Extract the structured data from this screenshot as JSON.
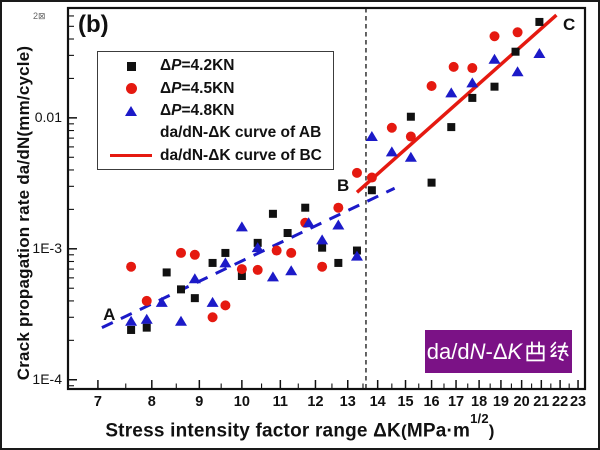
{
  "figure": {
    "panel_label": "(b)",
    "corner_artifact": "2⊠",
    "frame_color": "#1a1a1a",
    "background": "#ffffff"
  },
  "chart_data": {
    "type": "scatter",
    "x_scale": "log",
    "y_scale": "log",
    "grid": false,
    "xlabel": {
      "text": "Stress intensity factor range ΔK",
      "unit_open": "(",
      "unit": "MPa·m",
      "unit_sup": "1/2",
      "unit_close": ")"
    },
    "ylabel": "Crack propagation rate da/dN(mm/cycle)",
    "xlim": [
      6.5,
      23.4
    ],
    "ylim": [
      8.5e-05,
      0.069
    ],
    "x_major_ticks": [
      7,
      8,
      9,
      10,
      11,
      12,
      13,
      14,
      15,
      16,
      17,
      18,
      19,
      20,
      21,
      22,
      23
    ],
    "y_major_ticks": [
      {
        "value": 0.01,
        "label": "0.01"
      },
      {
        "value": 0.001,
        "label": "1E-3"
      },
      {
        "value": 0.0001,
        "label": "1E-4"
      }
    ],
    "series": [
      {
        "name": "ΔP=4.2KN",
        "marker": "square",
        "color": "#111111",
        "points": [
          [
            7.6,
            0.00024
          ],
          [
            7.9,
            0.00025
          ],
          [
            8.3,
            0.00066
          ],
          [
            8.6,
            0.00049
          ],
          [
            8.9,
            0.00042
          ],
          [
            9.3,
            0.00078
          ],
          [
            9.6,
            0.00093
          ],
          [
            10.0,
            0.00062
          ],
          [
            10.4,
            0.00111
          ],
          [
            10.8,
            0.00185
          ],
          [
            11.2,
            0.00132
          ],
          [
            11.7,
            0.00206
          ],
          [
            12.2,
            0.00102
          ],
          [
            12.7,
            0.00078
          ],
          [
            13.3,
            0.00097
          ],
          [
            13.8,
            0.0028
          ],
          [
            15.2,
            0.0102
          ],
          [
            16.0,
            0.0032
          ],
          [
            16.8,
            0.0085
          ],
          [
            17.7,
            0.0142
          ],
          [
            18.7,
            0.0173
          ],
          [
            19.7,
            0.032
          ],
          [
            20.9,
            0.054
          ]
        ]
      },
      {
        "name": "ΔP=4.5KN",
        "marker": "circle",
        "color": "#e51910",
        "points": [
          [
            7.6,
            0.00073
          ],
          [
            7.9,
            0.0004
          ],
          [
            8.6,
            0.00093
          ],
          [
            8.9,
            0.0009
          ],
          [
            9.3,
            0.0003
          ],
          [
            9.6,
            0.00037
          ],
          [
            10.0,
            0.0007
          ],
          [
            10.4,
            0.00069
          ],
          [
            10.9,
            0.00097
          ],
          [
            11.3,
            0.00093
          ],
          [
            11.7,
            0.00158
          ],
          [
            12.2,
            0.00073
          ],
          [
            12.7,
            0.00206
          ],
          [
            13.3,
            0.0038
          ],
          [
            13.8,
            0.0035
          ],
          [
            14.5,
            0.0084
          ],
          [
            15.2,
            0.0072
          ],
          [
            16.0,
            0.0175
          ],
          [
            16.9,
            0.0245
          ],
          [
            17.7,
            0.024
          ],
          [
            18.7,
            0.042
          ],
          [
            19.8,
            0.045
          ]
        ]
      },
      {
        "name": "ΔP=4.8KN",
        "marker": "triangle",
        "color": "#1c1ac8",
        "points": [
          [
            7.6,
            0.00028
          ],
          [
            7.9,
            0.00029
          ],
          [
            8.2,
            0.00039
          ],
          [
            8.6,
            0.00028
          ],
          [
            8.9,
            0.00059
          ],
          [
            9.3,
            0.00039
          ],
          [
            9.6,
            0.00078
          ],
          [
            10.0,
            0.00147
          ],
          [
            10.4,
            0.00102
          ],
          [
            10.8,
            0.00061
          ],
          [
            11.3,
            0.00068
          ],
          [
            11.8,
            0.00158
          ],
          [
            12.2,
            0.00117
          ],
          [
            12.7,
            0.00152
          ],
          [
            13.3,
            0.00088
          ],
          [
            13.8,
            0.0072
          ],
          [
            14.5,
            0.0055
          ],
          [
            15.2,
            0.005
          ],
          [
            16.8,
            0.0155
          ],
          [
            17.7,
            0.0185
          ],
          [
            18.7,
            0.028
          ],
          [
            19.8,
            0.0225
          ],
          [
            20.9,
            0.031
          ]
        ]
      }
    ],
    "lines": [
      {
        "name": "da/dN-ΔK curve of AB",
        "color": "#1c1ac8",
        "style": "dashed",
        "x1": 7.07,
        "y1": 0.00025,
        "x2": 14.6,
        "y2": 0.0029
      },
      {
        "name": "da/dN-ΔK curve of BC",
        "color": "#e51910",
        "style": "solid",
        "x1": 13.3,
        "y1": 0.0027,
        "x2": 21.8,
        "y2": 0.061
      }
    ],
    "vline": {
      "x": 13.6,
      "style": "dashed",
      "color": "#111111"
    },
    "annotations": [
      {
        "text": "A",
        "x": 7.2,
        "y": 0.00031
      },
      {
        "text": "B",
        "x": 12.85,
        "y": 0.003
      },
      {
        "text": "C",
        "x": 22.5,
        "y": 0.051
      }
    ]
  },
  "legend": {
    "items": [
      {
        "marker": "square",
        "color": "#111111",
        "pre": "Δ",
        "var": "P",
        "post": "=4.2KN"
      },
      {
        "marker": "circle",
        "color": "#e51910",
        "pre": "Δ",
        "var": "P",
        "post": "=4.5KN"
      },
      {
        "marker": "triangle",
        "color": "#1c1ac8",
        "pre": "Δ",
        "var": "P",
        "post": "=4.8KN"
      },
      {
        "marker": "dashed-line",
        "color": "#1c1ac8",
        "label": "da/dN-ΔK curve of AB"
      },
      {
        "marker": "solid-line",
        "color": "#e51910",
        "label": "da/dN-ΔK curve of BC"
      }
    ]
  },
  "badge": {
    "bg": "#7b1286",
    "full_text": "da/dN-ΔK曲线",
    "text_latin_1": "da/d",
    "text_italic_1": "N",
    "text_latin_2": "-Δ",
    "text_italic_2": "K",
    "text_cjk": "曲线"
  }
}
